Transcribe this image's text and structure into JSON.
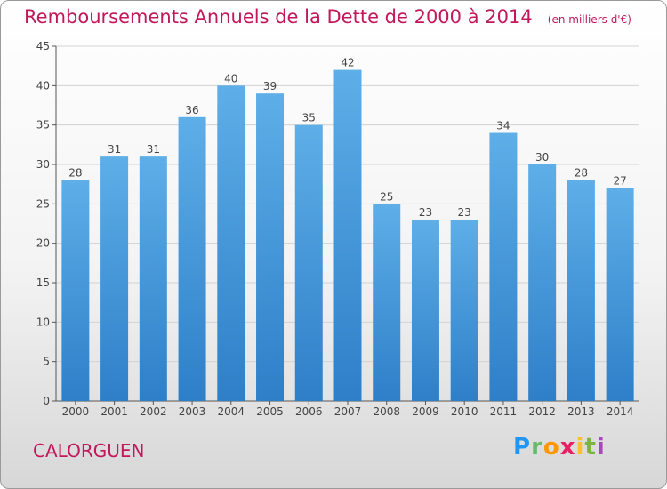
{
  "title": "Remboursements Annuels de la Dette de 2000 à 2014",
  "unit": "(en milliers d'€)",
  "commune": "CALORGUEN",
  "brand": "Proxiti",
  "colors": {
    "bar": "#4a9de0",
    "accent": "#c2185b"
  },
  "chart_data": {
    "type": "bar",
    "categories": [
      "2000",
      "2001",
      "2002",
      "2003",
      "2004",
      "2005",
      "2006",
      "2007",
      "2008",
      "2009",
      "2010",
      "2011",
      "2012",
      "2013",
      "2014"
    ],
    "values": [
      28,
      31,
      31,
      36,
      40,
      39,
      35,
      42,
      25,
      23,
      23,
      34,
      30,
      28,
      27
    ],
    "ylim": [
      0,
      45
    ],
    "yticks": [
      0,
      5,
      10,
      15,
      20,
      25,
      30,
      35,
      40,
      45
    ],
    "grid": true
  }
}
